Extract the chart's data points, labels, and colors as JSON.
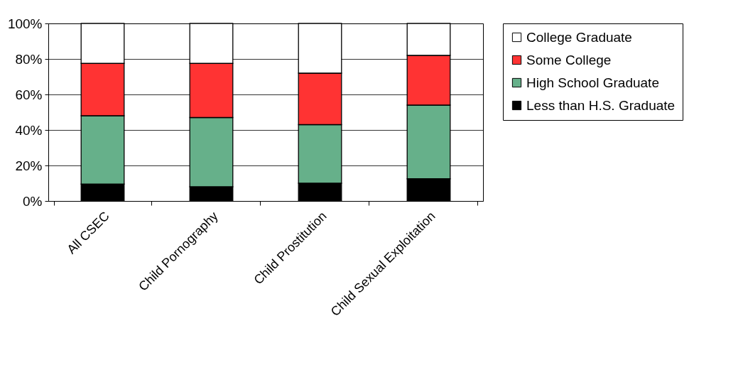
{
  "chart_data": {
    "type": "bar",
    "stacked": true,
    "categories": [
      "All CSEC",
      "Child Pornography",
      "Child Prostitution",
      "Child Sexual Exploitation"
    ],
    "series": [
      {
        "name": "Less than H.S. Graduate",
        "color": "#000000",
        "values": [
          9.5,
          8,
          10,
          12.5
        ]
      },
      {
        "name": "High School Graduate",
        "color": "#66b08a",
        "values": [
          38.5,
          39,
          33,
          41.5
        ]
      },
      {
        "name": "Some College",
        "color": "#ff3333",
        "values": [
          29.5,
          30.5,
          29,
          28
        ]
      },
      {
        "name": "College Graduate",
        "color": "#ffffff",
        "values": [
          22.5,
          22.5,
          28,
          18
        ]
      }
    ],
    "ylim": [
      0,
      100
    ],
    "yticks": [
      {
        "value": 0,
        "label": "0%"
      },
      {
        "value": 20,
        "label": "20%"
      },
      {
        "value": 40,
        "label": "40%"
      },
      {
        "value": 60,
        "label": "60%"
      },
      {
        "value": 80,
        "label": "80%"
      },
      {
        "value": 100,
        "label": "100%"
      }
    ],
    "grid": "y",
    "legend": "right"
  }
}
